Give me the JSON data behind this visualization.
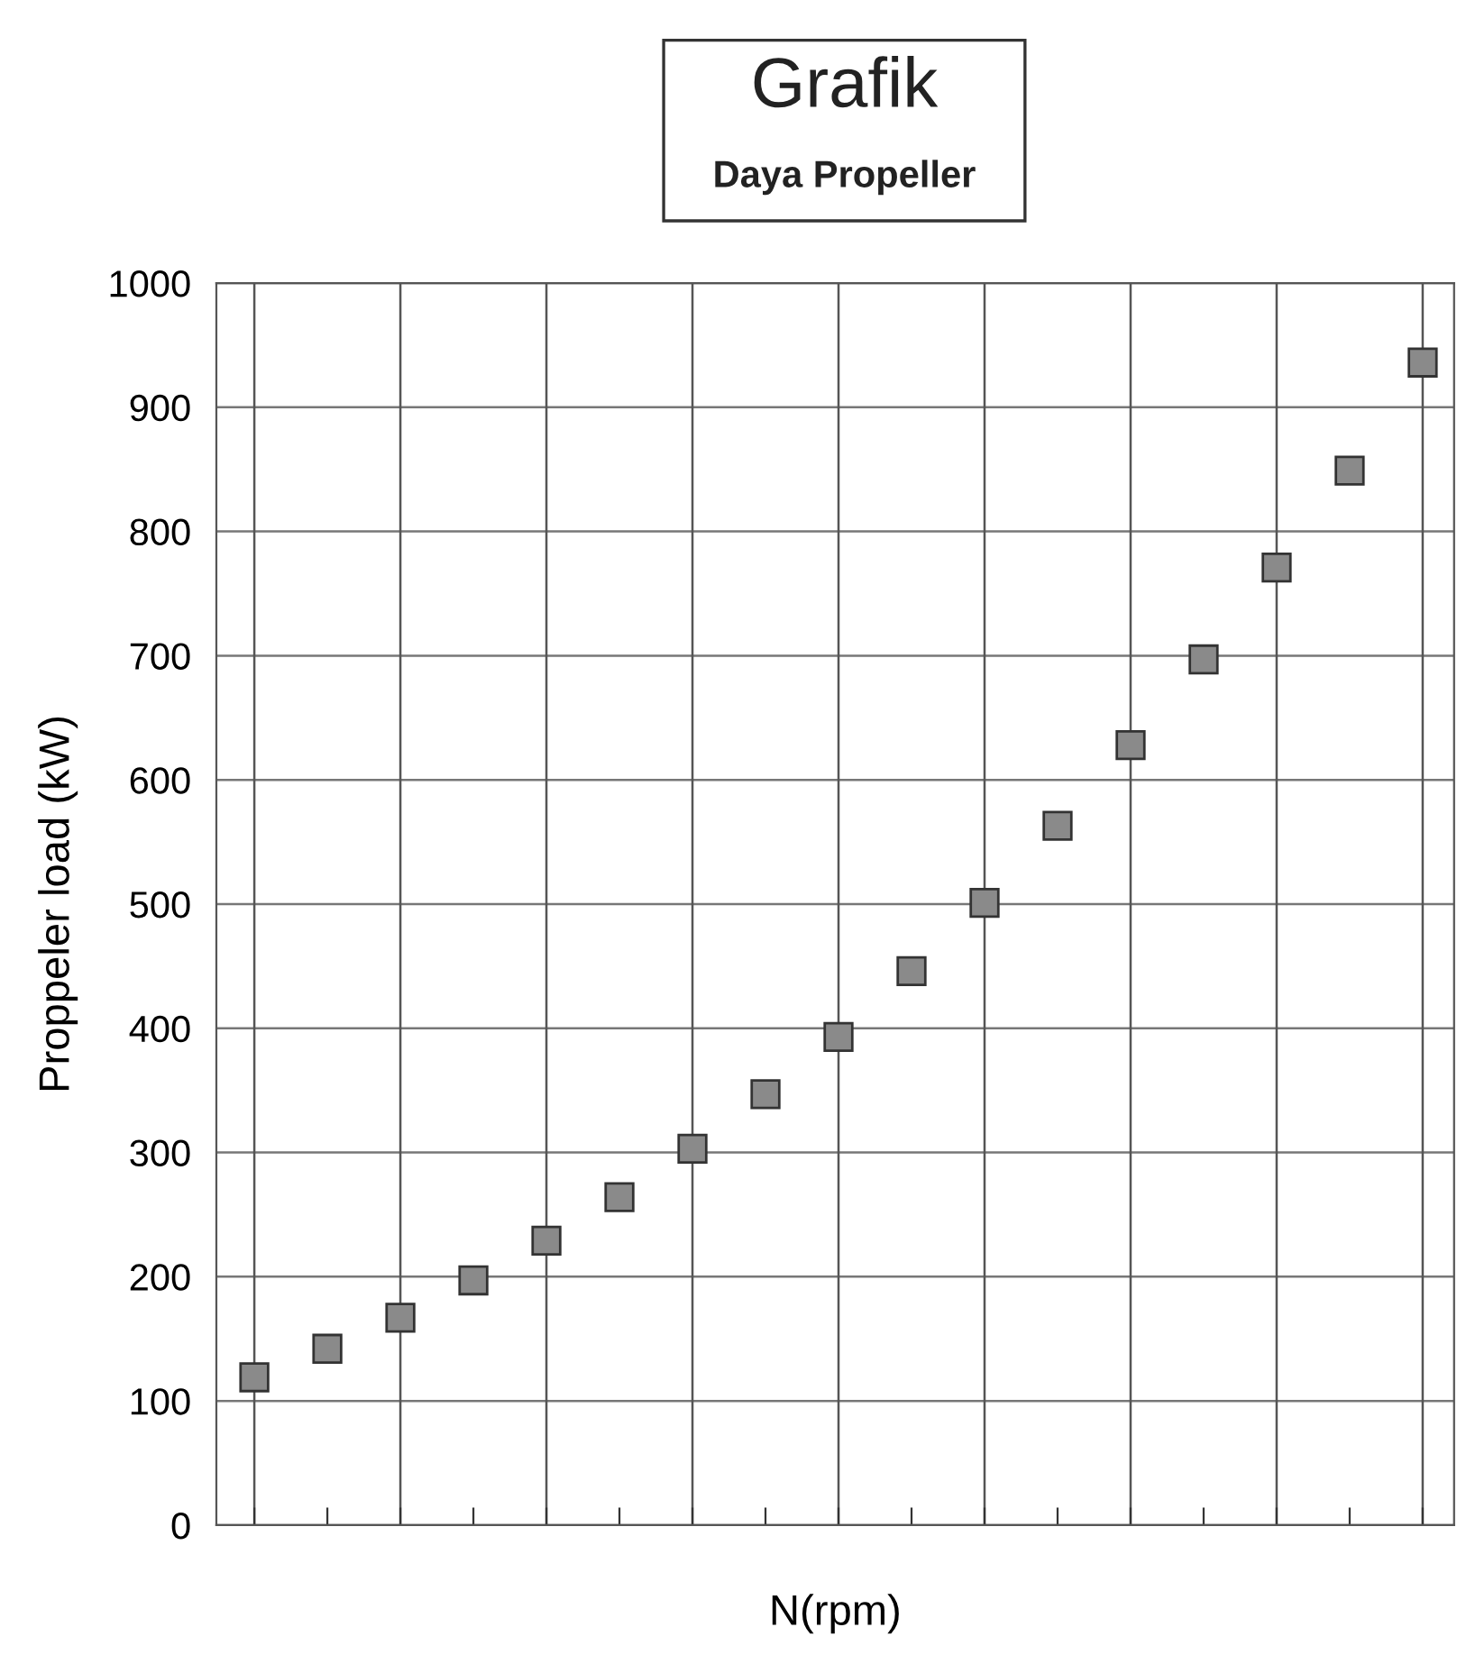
{
  "chart_data": {
    "type": "scatter",
    "title": "Grafik",
    "subtitle": "Daya Propeller",
    "xlabel": "N(rpm)",
    "ylabel": "Proppeler load (kW)",
    "categories": [
      null,
      null,
      null,
      null,
      null,
      null,
      null,
      null,
      null,
      null,
      null,
      null,
      null,
      null,
      null,
      null,
      null
    ],
    "series": [
      {
        "color": "#8a8a8a",
        "values": [
          119,
          142,
          167,
          197,
          229,
          264,
          303,
          347,
          393,
          446,
          501,
          563,
          628,
          697,
          771,
          849,
          936
        ]
      }
    ],
    "ylim": [
      0,
      1000
    ],
    "yticks": [
      0,
      100,
      200,
      300,
      400,
      500,
      600,
      700,
      800,
      900,
      1000
    ],
    "grid": true,
    "marker": "square"
  }
}
